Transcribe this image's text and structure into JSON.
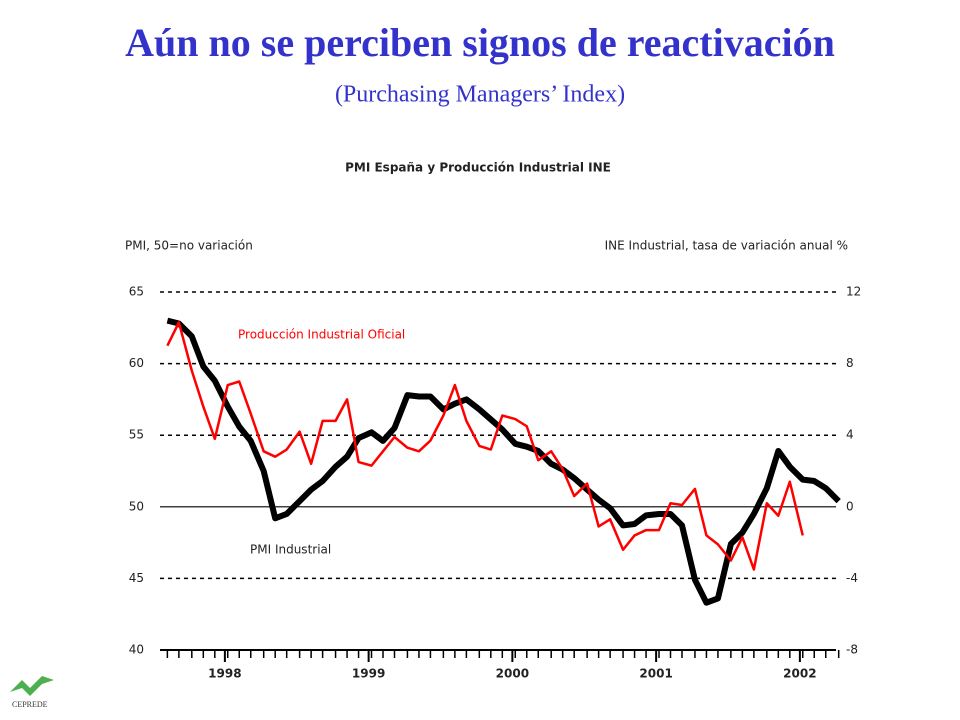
{
  "header": {
    "title": "Aún no se perciben signos de reactivación",
    "subtitle": "(Purchasing Managers’ Index)"
  },
  "logo": "CEPREDE",
  "chart_data": {
    "type": "line",
    "title": "PMI España y Producción Industrial INE",
    "ylabel": "PMI, 50=no variación",
    "y2label": "INE Industrial, tasa de variación anual %",
    "annotations": [
      "Producción Industrial Oficial",
      "PMI Industrial"
    ],
    "x": [
      1998.1,
      1998.18,
      1998.27,
      1998.35,
      1998.43,
      1998.52,
      1998.6,
      1998.68,
      1998.77,
      1998.85,
      1998.93,
      1999.02,
      1999.1,
      1999.18,
      1999.27,
      1999.35,
      1999.43,
      1999.52,
      1999.6,
      1999.68,
      1999.77,
      1999.85,
      1999.93,
      2000.02,
      2000.1,
      2000.18,
      2000.27,
      2000.35,
      2000.43,
      2000.52,
      2000.6,
      2000.68,
      2000.77,
      2000.85,
      2000.93,
      2001.02,
      2001.1,
      2001.18,
      2001.27,
      2001.35,
      2001.43,
      2001.52,
      2001.6,
      2001.68,
      2001.77,
      2001.85,
      2001.93,
      2002.02,
      2002.1,
      2002.18,
      2002.27,
      2002.35,
      2002.43,
      2002.52,
      2002.6,
      2002.68,
      2002.77
    ],
    "series": [
      {
        "name": "PMI Industrial",
        "color": "#000000",
        "values": [
          63.0,
          62.8,
          61.9,
          59.8,
          58.8,
          57.0,
          55.6,
          54.6,
          52.5,
          49.2,
          49.5,
          50.4,
          51.2,
          51.8,
          52.8,
          53.5,
          54.8,
          55.2,
          54.6,
          55.5,
          57.8,
          57.7,
          57.7,
          56.8,
          57.2,
          57.5,
          56.8,
          56.1,
          55.4,
          54.4,
          54.2,
          53.9,
          53.0,
          52.6,
          52.0,
          51.2,
          50.5,
          49.9,
          48.7,
          48.8,
          49.4,
          49.5,
          49.5,
          48.7,
          44.9,
          43.3,
          43.6,
          47.4,
          48.2,
          49.5,
          51.3,
          53.9,
          52.8,
          51.9,
          51.8,
          51.3,
          50.4
        ]
      },
      {
        "name": "Producción Industrial Oficial",
        "color": "#ff0000",
        "axis": "y2",
        "values": [
          9.0,
          10.3,
          7.6,
          5.6,
          3.8,
          6.8,
          7.0,
          5.2,
          3.1,
          2.8,
          3.2,
          4.2,
          2.4,
          4.8,
          4.8,
          6.0,
          2.5,
          2.3,
          3.1,
          3.9,
          3.3,
          3.1,
          3.7,
          5.1,
          6.8,
          4.8,
          3.4,
          3.2,
          5.1,
          4.9,
          4.5,
          2.6,
          3.1,
          2.1,
          0.6,
          1.3,
          -1.1,
          -0.7,
          -2.4,
          -1.6,
          -1.3,
          -1.3,
          0.2,
          0.1,
          1.0,
          -1.6,
          -2.1,
          -3.0,
          -1.7,
          -3.5,
          0.2,
          -0.5,
          1.4,
          -1.6,
          null,
          null,
          null
        ]
      }
    ],
    "xlim": [
      1998,
      2002.8
    ],
    "xticks": [
      {
        "value": 1998.5,
        "label": "1998"
      },
      {
        "value": 1999.5,
        "label": "1999"
      },
      {
        "value": 2000.5,
        "label": "2000"
      },
      {
        "value": 2001.5,
        "label": "2001"
      },
      {
        "value": 2002.5,
        "label": "2002"
      }
    ],
    "ylim": [
      40,
      65
    ],
    "yticks": [
      40,
      45,
      50,
      55,
      60,
      65
    ],
    "y2lim": [
      -8,
      12
    ],
    "y2ticks": [
      -8,
      -4,
      0,
      4,
      8,
      12
    ],
    "reference_line": 50,
    "grid": true
  }
}
